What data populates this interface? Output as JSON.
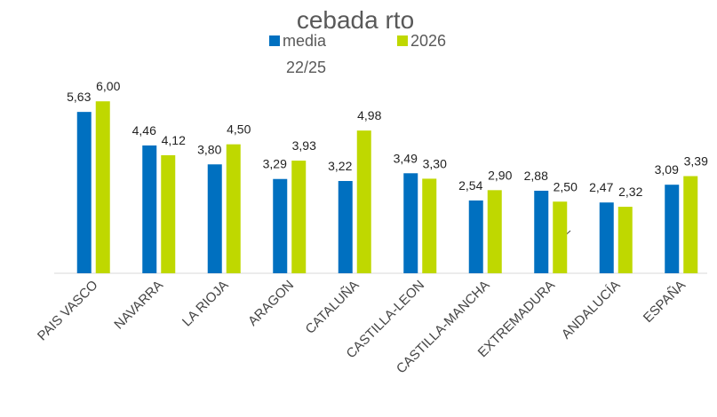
{
  "chart_data": {
    "type": "bar",
    "title": "cebada rto",
    "categories": [
      "PAIS VASCO",
      "NAVARRA",
      "LA RIOJA",
      "ARAGON",
      "CATALUÑA",
      "CASTILLA-LEON",
      "CASTILLA-MANCHA",
      "EXTREMADURA",
      "ANDALUCÍA",
      "ESPAÑA"
    ],
    "series": [
      {
        "name": "media 22/25",
        "color": "#0070c0",
        "values": [
          5.63,
          4.46,
          3.8,
          3.29,
          3.22,
          3.49,
          2.54,
          2.88,
          2.47,
          3.09
        ],
        "value_labels": [
          "5,63",
          "4,46",
          "3,80",
          "3,29",
          "3,22",
          "3,49",
          "2,54",
          "2,88",
          "2,47",
          "3,09"
        ]
      },
      {
        "name": "2026",
        "color": "#bfd800",
        "values": [
          6.0,
          4.12,
          4.5,
          3.93,
          4.98,
          3.3,
          2.9,
          2.5,
          2.32,
          3.39
        ],
        "value_labels": [
          "6,00",
          "4,12",
          "4,50",
          "3,93",
          "4,98",
          "3,30",
          "2,90",
          "2,50",
          "2,32",
          "3,39"
        ]
      }
    ],
    "ylim": [
      0,
      6.5
    ],
    "legend": "top"
  }
}
